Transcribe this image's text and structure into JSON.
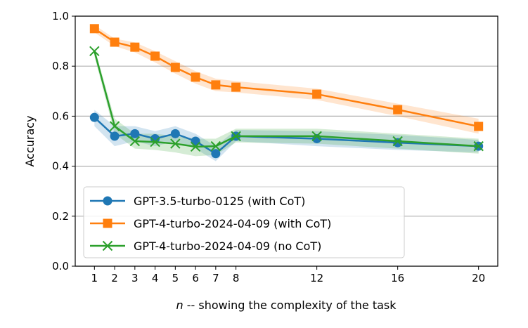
{
  "chart_data": {
    "type": "line",
    "title": "",
    "xlabel_var": "n",
    "xlabel_rest": " -- showing the complexity of the task",
    "ylabel": "Accuracy",
    "xlim": [
      0.05,
      20.95
    ],
    "ylim": [
      0.0,
      1.0
    ],
    "x": [
      1,
      2,
      3,
      4,
      5,
      6,
      7,
      8,
      12,
      16,
      20
    ],
    "xticks": [
      "1",
      "2",
      "3",
      "4",
      "5",
      "6",
      "7",
      "8",
      "12",
      "16",
      "20"
    ],
    "yticks": [
      "0.0",
      "0.2",
      "0.4",
      "0.6",
      "0.8",
      "1.0"
    ],
    "grid": "horizontal",
    "legend_position": "lower-left",
    "series": [
      {
        "name": "GPT-3.5-turbo-0125 (with CoT)",
        "color": "#1f77b4",
        "marker": "circle",
        "values": [
          0.595,
          0.52,
          0.53,
          0.51,
          0.53,
          0.5,
          0.45,
          0.52,
          0.51,
          0.494,
          0.48
        ],
        "lower": [
          0.56,
          0.48,
          0.5,
          0.48,
          0.5,
          0.47,
          0.42,
          0.5,
          0.48,
          0.465,
          0.455
        ],
        "upper": [
          0.625,
          0.56,
          0.56,
          0.54,
          0.56,
          0.53,
          0.48,
          0.545,
          0.54,
          0.525,
          0.505
        ]
      },
      {
        "name": "GPT-4-turbo-2024-04-09 (with CoT)",
        "color": "#ff7f0e",
        "marker": "square",
        "values": [
          0.95,
          0.896,
          0.876,
          0.84,
          0.795,
          0.756,
          0.725,
          0.716,
          0.688,
          0.626,
          0.559
        ],
        "lower": [
          0.935,
          0.88,
          0.855,
          0.815,
          0.77,
          0.73,
          0.7,
          0.695,
          0.665,
          0.6,
          0.53
        ],
        "upper": [
          0.965,
          0.91,
          0.895,
          0.86,
          0.82,
          0.78,
          0.75,
          0.74,
          0.71,
          0.65,
          0.59
        ]
      },
      {
        "name": "GPT-4-turbo-2024-04-09 (no CoT)",
        "color": "#2ca02c",
        "marker": "x",
        "values": [
          0.86,
          0.56,
          0.5,
          0.497,
          0.49,
          0.478,
          0.48,
          0.52,
          0.52,
          0.5,
          0.48
        ],
        "lower": [
          0.84,
          0.53,
          0.47,
          0.465,
          0.455,
          0.44,
          0.445,
          0.495,
          0.49,
          0.47,
          0.45
        ],
        "upper": [
          0.875,
          0.59,
          0.53,
          0.53,
          0.52,
          0.51,
          0.51,
          0.55,
          0.55,
          0.53,
          0.51
        ]
      }
    ]
  }
}
